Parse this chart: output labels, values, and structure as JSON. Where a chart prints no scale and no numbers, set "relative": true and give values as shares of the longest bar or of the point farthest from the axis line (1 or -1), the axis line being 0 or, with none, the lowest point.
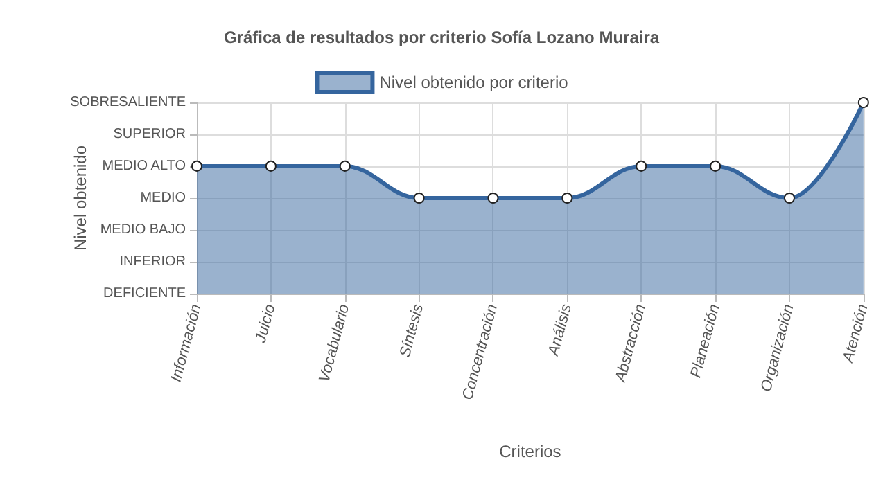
{
  "chart_data": {
    "type": "area",
    "title": "Gráfica de resultados por criterio Sofía Lozano Muraira",
    "xlabel": "Criterios",
    "ylabel": "Nivel obtenido",
    "categories": [
      "Información",
      "Juicio",
      "Vocabulario",
      "Síntesis",
      "Concentración",
      "Análisis",
      "Abstracción",
      "Planeación",
      "Organización",
      "Atención"
    ],
    "series": [
      {
        "name": "Nivel obtenido por criterio",
        "color": "#35659e",
        "values": [
          0.667,
          0.667,
          0.667,
          0.5,
          0.5,
          0.5,
          0.667,
          0.667,
          0.5,
          1
        ]
      }
    ],
    "relative": true,
    "annotations": [
      "DEFICIENTE",
      "INFERIOR",
      "MEDIO BAJO",
      "MEDIO",
      "MEDIO ALTO",
      "SUPERIOR",
      "SOBRESALIENTE"
    ],
    "grid": true,
    "legend": "top",
    "marker": "circle",
    "line_style": "solid"
  }
}
